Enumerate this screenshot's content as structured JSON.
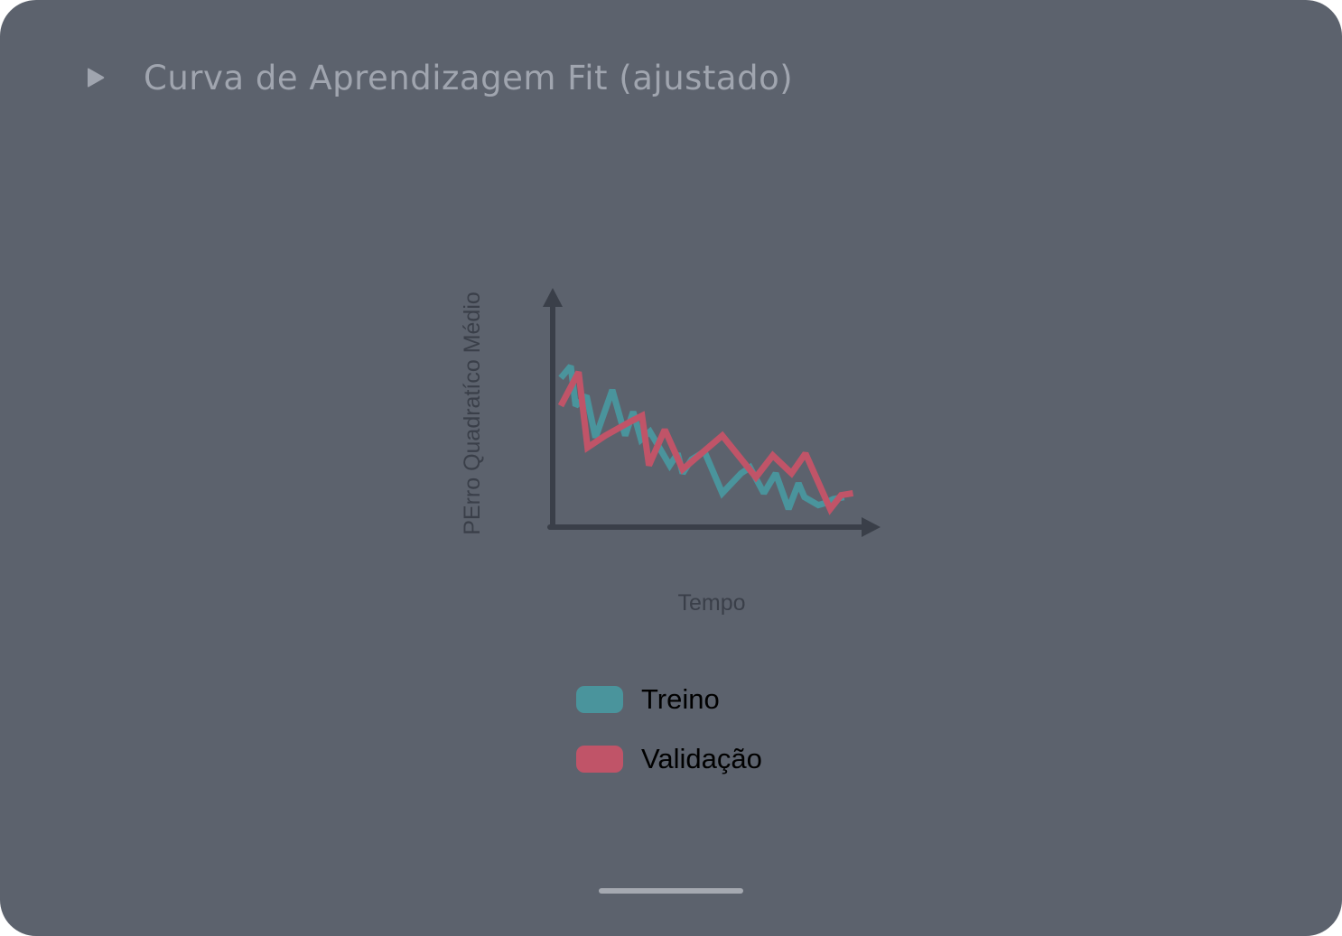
{
  "header": {
    "title": "Curva de Aprendizagem Fit (ajustado)",
    "play_icon": "play-triangle-icon"
  },
  "colors": {
    "background": "#5c626d",
    "title": "#a0a5af",
    "axis": "#3a3f49",
    "axis_label": "#3a3f49",
    "train": "#4a949c",
    "validation": "#c05468"
  },
  "chart_data": {
    "type": "line",
    "title": "",
    "xlabel": "Tempo",
    "ylabel": "PErro Quadratíco Médio",
    "xlim": [
      0,
      30
    ],
    "ylim": [
      0,
      100
    ],
    "grid": false,
    "ticks": false,
    "legend_position": "bottom",
    "series": [
      {
        "name": "Treino",
        "color": "#4a949c",
        "points": [
          [
            0.0,
            71
          ],
          [
            1.0,
            77
          ],
          [
            1.5,
            57
          ],
          [
            2.6,
            62
          ],
          [
            3.5,
            41
          ],
          [
            5.2,
            65
          ],
          [
            6.5,
            42
          ],
          [
            7.3,
            54
          ],
          [
            8.1,
            40
          ],
          [
            9.0,
            44
          ],
          [
            11.0,
            27
          ],
          [
            11.8,
            33
          ],
          [
            12.3,
            23
          ],
          [
            13.2,
            30
          ],
          [
            14.5,
            34
          ],
          [
            16.3,
            13
          ],
          [
            18.2,
            23
          ],
          [
            19.1,
            26
          ],
          [
            20.5,
            13
          ],
          [
            21.7,
            23
          ],
          [
            23.0,
            5
          ],
          [
            24.0,
            18
          ],
          [
            24.6,
            11
          ],
          [
            26.0,
            7
          ],
          [
            26.7,
            8
          ],
          [
            27.5,
            10
          ],
          [
            28.6,
            11
          ]
        ]
      },
      {
        "name": "Validação",
        "color": "#c05468",
        "points": [
          [
            0.0,
            57
          ],
          [
            1.8,
            74
          ],
          [
            2.7,
            36
          ],
          [
            4.5,
            42
          ],
          [
            7.0,
            49
          ],
          [
            8.2,
            52
          ],
          [
            8.9,
            27
          ],
          [
            10.5,
            45
          ],
          [
            12.3,
            25
          ],
          [
            16.3,
            42
          ],
          [
            19.7,
            21
          ],
          [
            21.4,
            32
          ],
          [
            23.3,
            23
          ],
          [
            24.7,
            33
          ],
          [
            27.2,
            5
          ],
          [
            28.3,
            12
          ],
          [
            29.5,
            13
          ]
        ]
      }
    ]
  },
  "legend": {
    "items": [
      {
        "label": "Treino",
        "color": "#4a949c"
      },
      {
        "label": "Validação",
        "color": "#c05468"
      }
    ]
  }
}
